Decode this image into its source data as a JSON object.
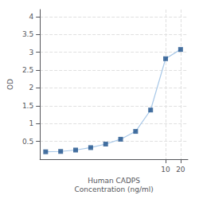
{
  "chart_data": {
    "type": "line",
    "xlabel": "Human CADPS\nConcentration (ng/ml)",
    "ylabel": "OD",
    "x": [
      0.039,
      0.078,
      0.156,
      0.313,
      0.625,
      1.25,
      2.5,
      5,
      10,
      20
    ],
    "series": [
      {
        "type": "line",
        "color": "#a8c8e8",
        "values": [
          0.208,
          0.218,
          0.257,
          0.325,
          0.425,
          0.56,
          0.78,
          1.38,
          2.82,
          3.08
        ]
      },
      {
        "type": "scatter",
        "color": "#1a4f8a",
        "marker": "square",
        "values": [
          0.208,
          0.218,
          0.257,
          0.325,
          0.425,
          0.56,
          0.78,
          1.38,
          2.82,
          3.08
        ]
      }
    ],
    "log": "x",
    "xlim": [
      0.03,
      28
    ],
    "xticks": [
      10,
      20
    ],
    "ylim": [
      0,
      4.2
    ],
    "yticks": [
      0.5,
      1,
      1.5,
      2,
      2.5,
      3,
      3.5,
      4
    ],
    "grid": true
  }
}
